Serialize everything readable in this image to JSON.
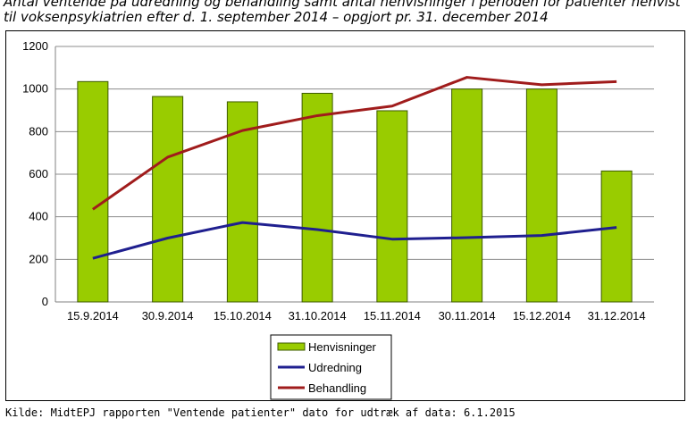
{
  "title": "Antal ventende på udredning og behandling samt antal henvisninger i perioden for patienter henvist til voksenpsykiatrien efter d. 1. september 2014 – opgjort pr. 31. december 2014",
  "source": "Kilde: MidtEPJ rapporten \"Ventende patienter\" dato for udtræk af data: 6.1.2015",
  "colors": {
    "bar_fill": "#99cc00",
    "bar_stroke": "#3d5a00",
    "udredning": "#1f1f8f",
    "behandling": "#a01c1c",
    "grid": "#8c8c8c"
  },
  "chart_data": {
    "type": "bar",
    "categories": [
      "15.9.2014",
      "30.9.2014",
      "15.10.2014",
      "31.10.2014",
      "15.11.2014",
      "30.11.2014",
      "15.12.2014",
      "31.12.2014"
    ],
    "ylim": [
      0,
      1200
    ],
    "yticks": [
      "0",
      "200",
      "400",
      "600",
      "800",
      "1000",
      "1200"
    ],
    "grid": true,
    "legend_position": "bottom-center",
    "series": [
      {
        "name": "Henvisninger",
        "type": "bar",
        "values": [
          1035,
          965,
          940,
          980,
          898,
          1000,
          1000,
          615
        ]
      },
      {
        "name": "Udredning",
        "type": "line",
        "values": [
          205,
          300,
          373,
          340,
          295,
          302,
          312,
          350
        ]
      },
      {
        "name": "Behandling",
        "type": "line",
        "values": [
          435,
          680,
          805,
          875,
          920,
          1055,
          1020,
          1035
        ]
      }
    ]
  }
}
